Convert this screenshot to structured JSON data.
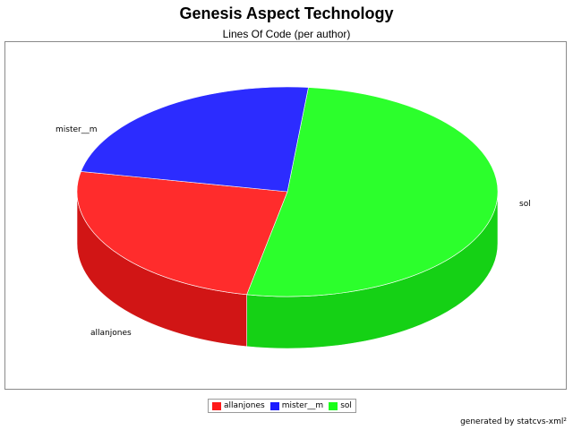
{
  "chart_data": {
    "type": "pie",
    "title": "Genesis Aspect Technology",
    "subtitle": "Lines Of Code (per author)",
    "slices": [
      {
        "label": "allanjones",
        "value": 25,
        "color": "#ff1a1a"
      },
      {
        "label": "mister__m",
        "value": 23.5,
        "color": "#1a1aff"
      },
      {
        "label": "sol",
        "value": 51.5,
        "color": "#1aff1a"
      }
    ],
    "three_d": true,
    "legend_position": "bottom"
  },
  "legend": {
    "items": [
      {
        "label": "allanjones",
        "color": "#ff1a1a"
      },
      {
        "label": "mister__m",
        "color": "#1a1aff"
      },
      {
        "label": "sol",
        "color": "#1aff1a"
      }
    ]
  },
  "footer": "generated by statcvs-xml²"
}
